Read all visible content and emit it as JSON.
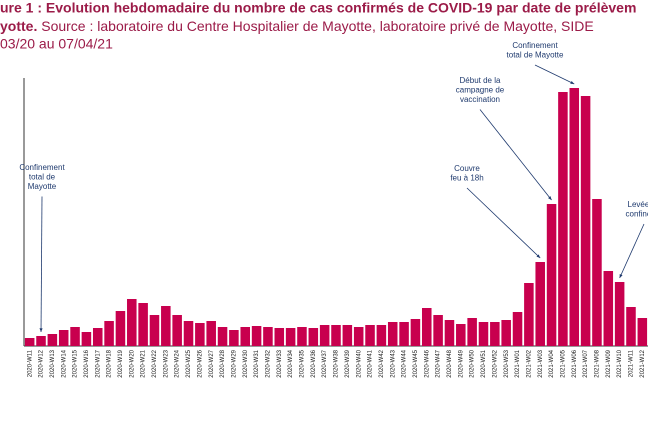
{
  "chart_data": {
    "type": "bar",
    "title": "ure 1 : Evolution hebdomadaire du nombre de cas confirmés de COVID-19 par date de prélèvem",
    "subtitle_bold": "yotte.",
    "subtitle": "Source : laboratoire du Centre Hospitalier de Mayotte, laboratoire privé de Mayotte, SIDE",
    "period": "03/20 au 07/04/21",
    "categories": [
      "2020-W11",
      "2020-W12",
      "2020-W13",
      "2020-W14",
      "2020-W15",
      "2020-W16",
      "2020-W17",
      "2020-W18",
      "2020-W19",
      "2020-W20",
      "2020-W21",
      "2020-W22",
      "2020-W23",
      "2020-W24",
      "2020-W25",
      "2020-W26",
      "2020-W27",
      "2020-W28",
      "2020-W29",
      "2020-W30",
      "2020-W31",
      "2020-W32",
      "2020-W33",
      "2020-W34",
      "2020-W35",
      "2020-W36",
      "2020-W37",
      "2020-W38",
      "2020-W39",
      "2020-W40",
      "2020-W41",
      "2020-W42",
      "2020-W43",
      "2020-W44",
      "2020-W45",
      "2020-W46",
      "2020-W47",
      "2020-W48",
      "2020-W49",
      "2020-W50",
      "2020-W51",
      "2020-W52",
      "2020-W53",
      "2021-W01",
      "2021-W02",
      "2021-W03",
      "2021-W04",
      "2021-W05",
      "2021-W06",
      "2021-W07",
      "2021-W08",
      "2021-W09",
      "2021-W10",
      "2021-W11",
      "2021-W12"
    ],
    "values": [
      8,
      10,
      12,
      16,
      19,
      14,
      18,
      25,
      35,
      47,
      43,
      31,
      40,
      31,
      25,
      23,
      25,
      19,
      16,
      19,
      20,
      19,
      18,
      18,
      19,
      18,
      21,
      21,
      21,
      19,
      21,
      21,
      24,
      24,
      27,
      38,
      31,
      26,
      22,
      28,
      24,
      24,
      26,
      34,
      63,
      84,
      142,
      254,
      258,
      250,
      147,
      75,
      64,
      39,
      28
    ],
    "color": "#c8004e",
    "ylim": [
      0,
      270
    ],
    "annotations": [
      {
        "lines": [
          "Confinement",
          "total de",
          "Mayotte"
        ],
        "target": 1
      },
      {
        "lines": [
          "Début de la",
          "campagne de",
          "vaccination"
        ],
        "target": 46
      },
      {
        "lines": [
          "Confinement",
          "total de Mayotte"
        ],
        "target": 48
      },
      {
        "lines": [
          "Couvre",
          "feu à 18h"
        ],
        "target": 45
      },
      {
        "lines": [
          "Levée du",
          "confineme"
        ],
        "target": 52
      }
    ]
  }
}
